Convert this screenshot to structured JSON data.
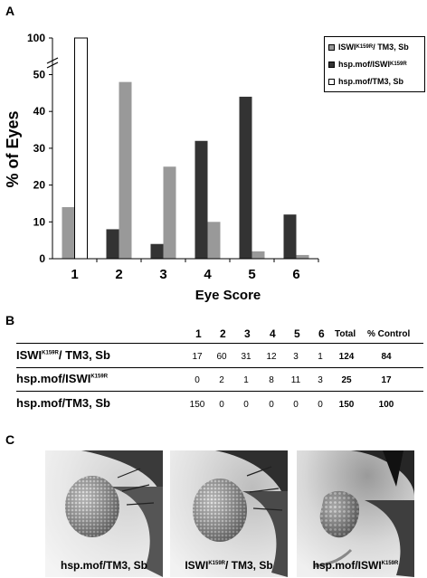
{
  "panels": {
    "a": "A",
    "b": "B",
    "c": "C"
  },
  "chart_data": {
    "type": "bar",
    "ylabel": "% of Eyes",
    "xlabel": "Eye Score",
    "categories": [
      "1",
      "2",
      "3",
      "4",
      "5",
      "6"
    ],
    "y_ticks": [
      "0",
      "10",
      "20",
      "30",
      "40",
      "50",
      "100"
    ],
    "ylim": [
      0,
      100
    ],
    "axis_break": [
      55,
      95
    ],
    "series": [
      {
        "name": "ISWI K159R / TM3, Sb",
        "name_parts": [
          "ISWI",
          "K159R",
          "/ TM3, Sb"
        ],
        "color": "#999999",
        "values": [
          14,
          48,
          25,
          10,
          2,
          1
        ]
      },
      {
        "name": "hsp.mof/ISWI K159R",
        "name_parts": [
          "hsp.mof/ISWI",
          "K159R",
          ""
        ],
        "color": "#333333",
        "values": [
          0,
          8,
          4,
          32,
          44,
          12
        ]
      },
      {
        "name": "hsp.mof/TM3, Sb",
        "name_parts": [
          "hsp.mof/TM3, Sb",
          "",
          ""
        ],
        "color": "#ffffff",
        "values": [
          100,
          0,
          0,
          0,
          0,
          0
        ]
      }
    ],
    "legend": "top-right"
  },
  "table": {
    "headers": [
      "1",
      "2",
      "3",
      "4",
      "5",
      "6",
      "Total",
      "% Control"
    ],
    "rows": [
      {
        "label_parts": [
          "ISWI",
          "K159R",
          "/ TM3, Sb"
        ],
        "values": [
          "17",
          "60",
          "31",
          "12",
          "3",
          "1"
        ],
        "total": "124",
        "control": "84"
      },
      {
        "label_parts": [
          "hsp.mof/ISWI",
          "K159R",
          ""
        ],
        "values": [
          "0",
          "2",
          "1",
          "8",
          "11",
          "3"
        ],
        "total": "25",
        "control": "17"
      },
      {
        "label_parts": [
          "hsp.mof/TM3, Sb",
          "",
          ""
        ],
        "values": [
          "150",
          "0",
          "0",
          "0",
          "0",
          "0"
        ],
        "total": "150",
        "control": "100"
      }
    ]
  },
  "photos": [
    {
      "caption_parts": [
        "hsp.mof/TM3, Sb",
        "",
        ""
      ]
    },
    {
      "caption_parts": [
        "ISWI",
        "K159R",
        "/ TM3, Sb"
      ]
    },
    {
      "caption_parts": [
        "hsp.mof/ISWI",
        "K159R",
        ""
      ]
    }
  ]
}
